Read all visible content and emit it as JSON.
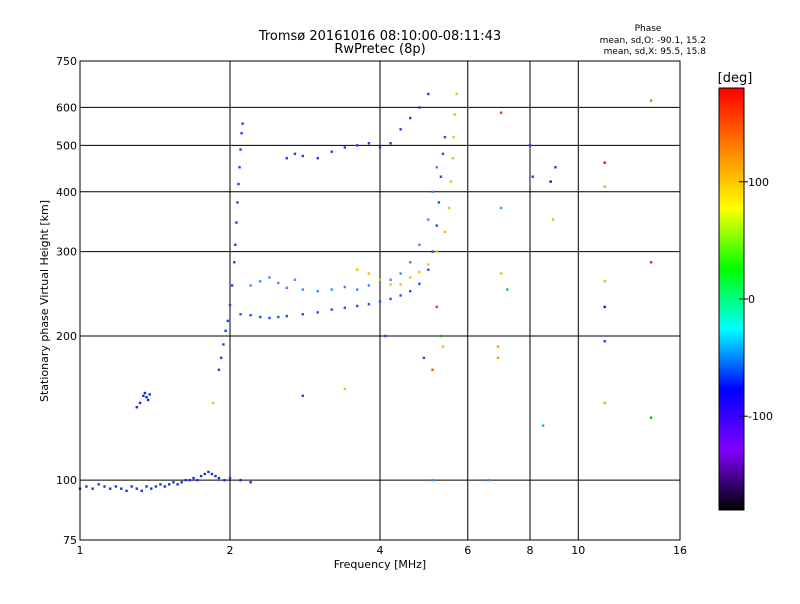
{
  "chart_data": {
    "type": "scatter",
    "title": "Tromsø 20161016 08:10:00-08:11:43",
    "subtitle": "RwPretec (8p)",
    "xlabel": "Frequency [MHz]",
    "ylabel": "Stationary phase Virtual Height [km]",
    "x_scale": "log",
    "y_scale": "log",
    "xlim": [
      1,
      16
    ],
    "ylim": [
      75,
      750
    ],
    "x_ticks": [
      1,
      2,
      4,
      6,
      8,
      10,
      16
    ],
    "y_ticks": [
      75,
      100,
      200,
      300,
      400,
      500,
      600,
      750
    ],
    "grid": true,
    "phase_box": {
      "title": "Phase",
      "line_o": "mean, sd,O: -90.1, 15.2",
      "line_x": "mean, sd,X:  95.5, 15.8"
    },
    "colorbar": {
      "label": "[deg]",
      "range": [
        -180,
        180
      ],
      "ticks": [
        100,
        0,
        -100
      ],
      "colors": [
        "#ff0000",
        "#ff8000",
        "#ffff00",
        "#00ff00",
        "#00ffff",
        "#0000ff",
        "#8000ff",
        "#000000"
      ]
    },
    "series": [
      {
        "color": "#1432e6",
        "points": [
          [
            1.0,
            96
          ],
          [
            1.03,
            97
          ],
          [
            1.06,
            96
          ],
          [
            1.09,
            98
          ],
          [
            1.12,
            97
          ],
          [
            1.15,
            96
          ],
          [
            1.18,
            97
          ],
          [
            1.21,
            96
          ],
          [
            1.24,
            95
          ],
          [
            1.27,
            97
          ],
          [
            1.3,
            96
          ],
          [
            1.33,
            95
          ],
          [
            1.36,
            97
          ],
          [
            1.39,
            96
          ],
          [
            1.42,
            97
          ],
          [
            1.45,
            98
          ],
          [
            1.48,
            97
          ],
          [
            1.51,
            98
          ],
          [
            1.54,
            99
          ],
          [
            1.57,
            98
          ],
          [
            1.6,
            99
          ],
          [
            1.63,
            100
          ],
          [
            1.66,
            100
          ],
          [
            1.69,
            101
          ],
          [
            1.72,
            100
          ],
          [
            1.75,
            102
          ],
          [
            1.78,
            103
          ],
          [
            1.81,
            104
          ],
          [
            1.84,
            103
          ],
          [
            1.87,
            102
          ],
          [
            1.9,
            101
          ],
          [
            1.95,
            100
          ],
          [
            2.0,
            101
          ],
          [
            2.1,
            100
          ],
          [
            2.2,
            99
          ]
        ]
      },
      {
        "color": "#1428dc",
        "points": [
          [
            1.3,
            142
          ],
          [
            1.32,
            145
          ],
          [
            1.34,
            150
          ],
          [
            1.35,
            152
          ],
          [
            1.36,
            149
          ],
          [
            1.37,
            147
          ],
          [
            1.38,
            151
          ]
        ]
      },
      {
        "color": "#1e3cf0",
        "points": [
          [
            1.9,
            170
          ],
          [
            1.92,
            180
          ],
          [
            1.94,
            192
          ],
          [
            1.96,
            205
          ],
          [
            1.98,
            215
          ],
          [
            2.0,
            232
          ],
          [
            2.02,
            255
          ],
          [
            2.04,
            285
          ],
          [
            2.05,
            310
          ],
          [
            2.06,
            345
          ],
          [
            2.07,
            380
          ],
          [
            2.08,
            415
          ],
          [
            2.09,
            450
          ],
          [
            2.1,
            490
          ],
          [
            2.11,
            530
          ],
          [
            2.12,
            555
          ]
        ]
      },
      {
        "color": "#1e50ff",
        "points": [
          [
            2.1,
            222
          ],
          [
            2.2,
            221
          ],
          [
            2.3,
            219
          ],
          [
            2.4,
            218
          ],
          [
            2.5,
            219
          ],
          [
            2.6,
            220
          ],
          [
            2.8,
            222
          ],
          [
            3.0,
            224
          ],
          [
            3.2,
            227
          ],
          [
            3.4,
            229
          ],
          [
            3.6,
            231
          ],
          [
            3.8,
            233
          ],
          [
            4.0,
            236
          ],
          [
            4.2,
            239
          ],
          [
            4.4,
            243
          ],
          [
            4.6,
            248
          ],
          [
            4.8,
            257
          ],
          [
            5.0,
            275
          ],
          [
            5.1,
            300
          ],
          [
            5.2,
            340
          ],
          [
            5.25,
            380
          ],
          [
            5.3,
            430
          ],
          [
            5.35,
            480
          ],
          [
            5.4,
            520
          ]
        ]
      },
      {
        "color": "#3c8cff",
        "points": [
          [
            2.2,
            255
          ],
          [
            2.3,
            260
          ],
          [
            2.4,
            265
          ],
          [
            2.5,
            258
          ],
          [
            2.6,
            252
          ],
          [
            2.7,
            262
          ],
          [
            2.8,
            250
          ],
          [
            3.0,
            248
          ],
          [
            3.2,
            250
          ],
          [
            3.4,
            253
          ],
          [
            3.6,
            250
          ],
          [
            3.8,
            255
          ],
          [
            4.0,
            258
          ],
          [
            4.2,
            262
          ],
          [
            4.4,
            270
          ],
          [
            4.6,
            285
          ],
          [
            4.8,
            310
          ],
          [
            5.0,
            350
          ],
          [
            5.1,
            400
          ],
          [
            5.2,
            450
          ]
        ]
      },
      {
        "color": "#1e3cf0",
        "points": [
          [
            2.6,
            470
          ],
          [
            2.7,
            480
          ],
          [
            2.8,
            475
          ],
          [
            3.0,
            470
          ],
          [
            3.2,
            485
          ],
          [
            3.4,
            495
          ],
          [
            3.6,
            500
          ],
          [
            3.8,
            505
          ],
          [
            4.0,
            495
          ],
          [
            4.2,
            505
          ],
          [
            4.4,
            540
          ],
          [
            4.6,
            570
          ],
          [
            4.8,
            600
          ],
          [
            5.0,
            640
          ]
        ]
      },
      {
        "color": "#f0c000",
        "points": [
          [
            3.6,
            275
          ],
          [
            3.8,
            270
          ],
          [
            4.0,
            262
          ],
          [
            4.2,
            256
          ],
          [
            4.4,
            256
          ],
          [
            4.6,
            265
          ],
          [
            4.8,
            272
          ],
          [
            5.0,
            282
          ],
          [
            5.2,
            300
          ],
          [
            5.4,
            330
          ],
          [
            5.5,
            370
          ],
          [
            5.55,
            420
          ],
          [
            5.6,
            470
          ],
          [
            5.62,
            520
          ],
          [
            5.65,
            580
          ],
          [
            5.7,
            640
          ]
        ]
      }
    ],
    "sparse_points": [
      {
        "x": 1.85,
        "y": 145,
        "color": "#e0c000"
      },
      {
        "x": 3.4,
        "y": 155,
        "color": "#e0c000"
      },
      {
        "x": 2.8,
        "y": 150,
        "color": "#1e3cf0"
      },
      {
        "x": 4.9,
        "y": 180,
        "color": "#1e3cf0"
      },
      {
        "x": 5.1,
        "y": 170,
        "color": "#e06000"
      },
      {
        "x": 5.3,
        "y": 200,
        "color": "#00c000"
      },
      {
        "x": 5.2,
        "y": 230,
        "color": "#ff3000"
      },
      {
        "x": 5.1,
        "y": 100,
        "color": "#20a0ff"
      },
      {
        "x": 6.6,
        "y": 100,
        "color": "#20a0ff"
      },
      {
        "x": 6.9,
        "y": 180,
        "color": "#e0a000"
      },
      {
        "x": 7.0,
        "y": 585,
        "color": "#e04000"
      },
      {
        "x": 7.0,
        "y": 270,
        "color": "#e0c000"
      },
      {
        "x": 7.2,
        "y": 250,
        "color": "#00c0c0"
      },
      {
        "x": 7.0,
        "y": 370,
        "color": "#20a0ff"
      },
      {
        "x": 8.0,
        "y": 500,
        "color": "#1e3cf0"
      },
      {
        "x": 8.1,
        "y": 430,
        "color": "#1e3cf0"
      },
      {
        "x": 8.5,
        "y": 130,
        "color": "#20a0ff"
      },
      {
        "x": 8.8,
        "y": 420,
        "color": "#4000c0"
      },
      {
        "x": 8.9,
        "y": 350,
        "color": "#e0c000"
      },
      {
        "x": 9.0,
        "y": 450,
        "color": "#1e3cf0"
      },
      {
        "x": 11.3,
        "y": 460,
        "color": "#ff0000"
      },
      {
        "x": 11.3,
        "y": 410,
        "color": "#ffa000"
      },
      {
        "x": 11.3,
        "y": 260,
        "color": "#e0c000"
      },
      {
        "x": 11.3,
        "y": 230,
        "color": "#4000c0"
      },
      {
        "x": 11.3,
        "y": 195,
        "color": "#2040ff"
      },
      {
        "x": 11.3,
        "y": 145,
        "color": "#ffa000"
      },
      {
        "x": 14.0,
        "y": 620,
        "color": "#e08000"
      },
      {
        "x": 14.0,
        "y": 285,
        "color": "#ff2000"
      },
      {
        "x": 14.0,
        "y": 135,
        "color": "#00c000"
      },
      {
        "x": 4.1,
        "y": 200,
        "color": "#1e3cf0"
      },
      {
        "x": 5.35,
        "y": 190,
        "color": "#e0c000"
      },
      {
        "x": 6.9,
        "y": 190,
        "color": "#ffa000"
      }
    ]
  }
}
